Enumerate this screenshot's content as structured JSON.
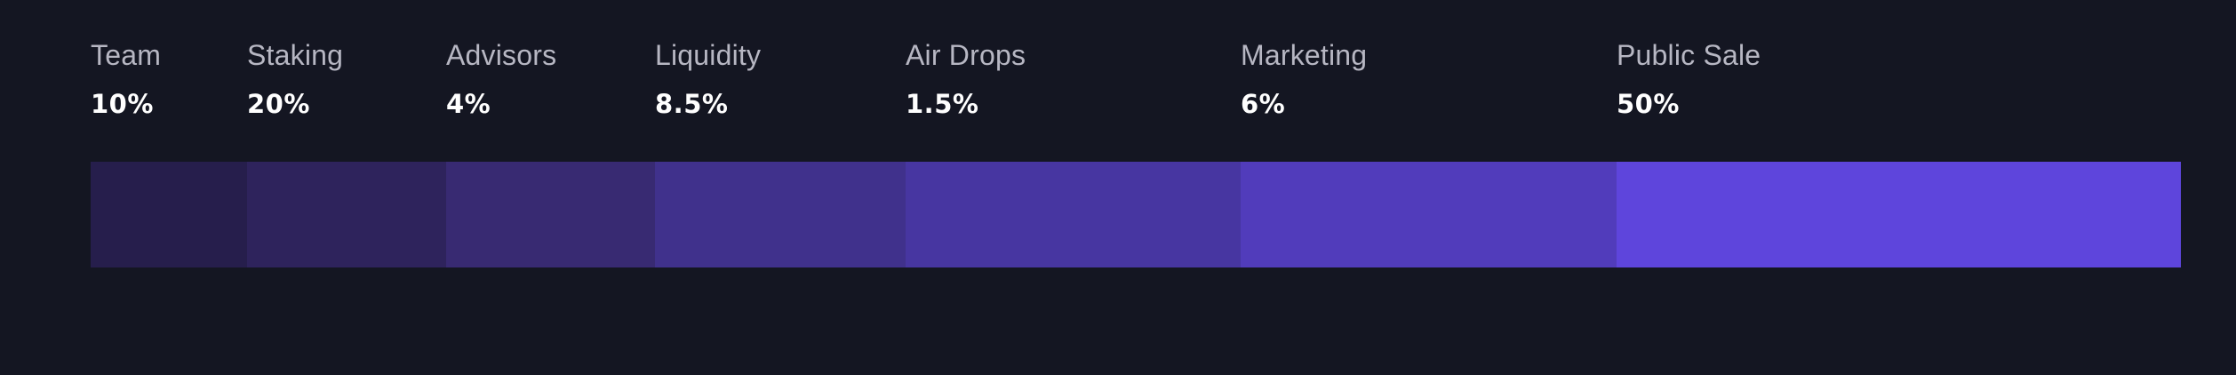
{
  "chart_data": {
    "type": "bar",
    "orientation": "horizontal-stacked",
    "categories": [
      "Team",
      "Staking",
      "Advisors",
      "Liquidity",
      "Air Drops",
      "Marketing",
      "Public Sale"
    ],
    "values": [
      10,
      20,
      4,
      8.5,
      1.5,
      6,
      50
    ],
    "value_labels": [
      "10%",
      "20%",
      "4%",
      "8.5%",
      "1.5%",
      "6%",
      "50%"
    ],
    "colors": [
      "#261e4c",
      "#2e235c",
      "#382a72",
      "#40318c",
      "#4736a1",
      "#513cbb",
      "#5e45dc"
    ],
    "background": "#141622",
    "legend": "labels above each segment",
    "grid": false
  }
}
